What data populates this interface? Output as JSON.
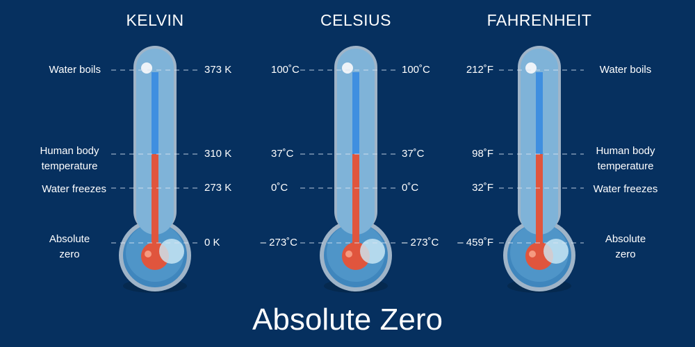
{
  "scales": [
    {
      "name": "KELVIN",
      "boils": "373 K",
      "body": "310 K",
      "freezes": "273 K",
      "zero": "0 K"
    },
    {
      "name": "CELSIUS",
      "boils": "100˚C",
      "body": "37˚C",
      "freezes": "0˚C",
      "zero": "– 273˚C"
    },
    {
      "name": "FAHRENHEIT",
      "boils": "212˚F",
      "body": "98˚F",
      "freezes": "32˚F",
      "zero": "– 459˚F"
    }
  ],
  "labels": {
    "boils": "Water boils",
    "body_1": "Human body",
    "body_2": "temperature",
    "freezes": "Water freezes",
    "zero_1": "Absolute",
    "zero_2": "zero"
  },
  "title": "Absolute Zero",
  "colors": {
    "background": "#06305f",
    "hot": "#e0553d",
    "cold": "#3f8fe0",
    "glass": "#7fb3d8"
  }
}
